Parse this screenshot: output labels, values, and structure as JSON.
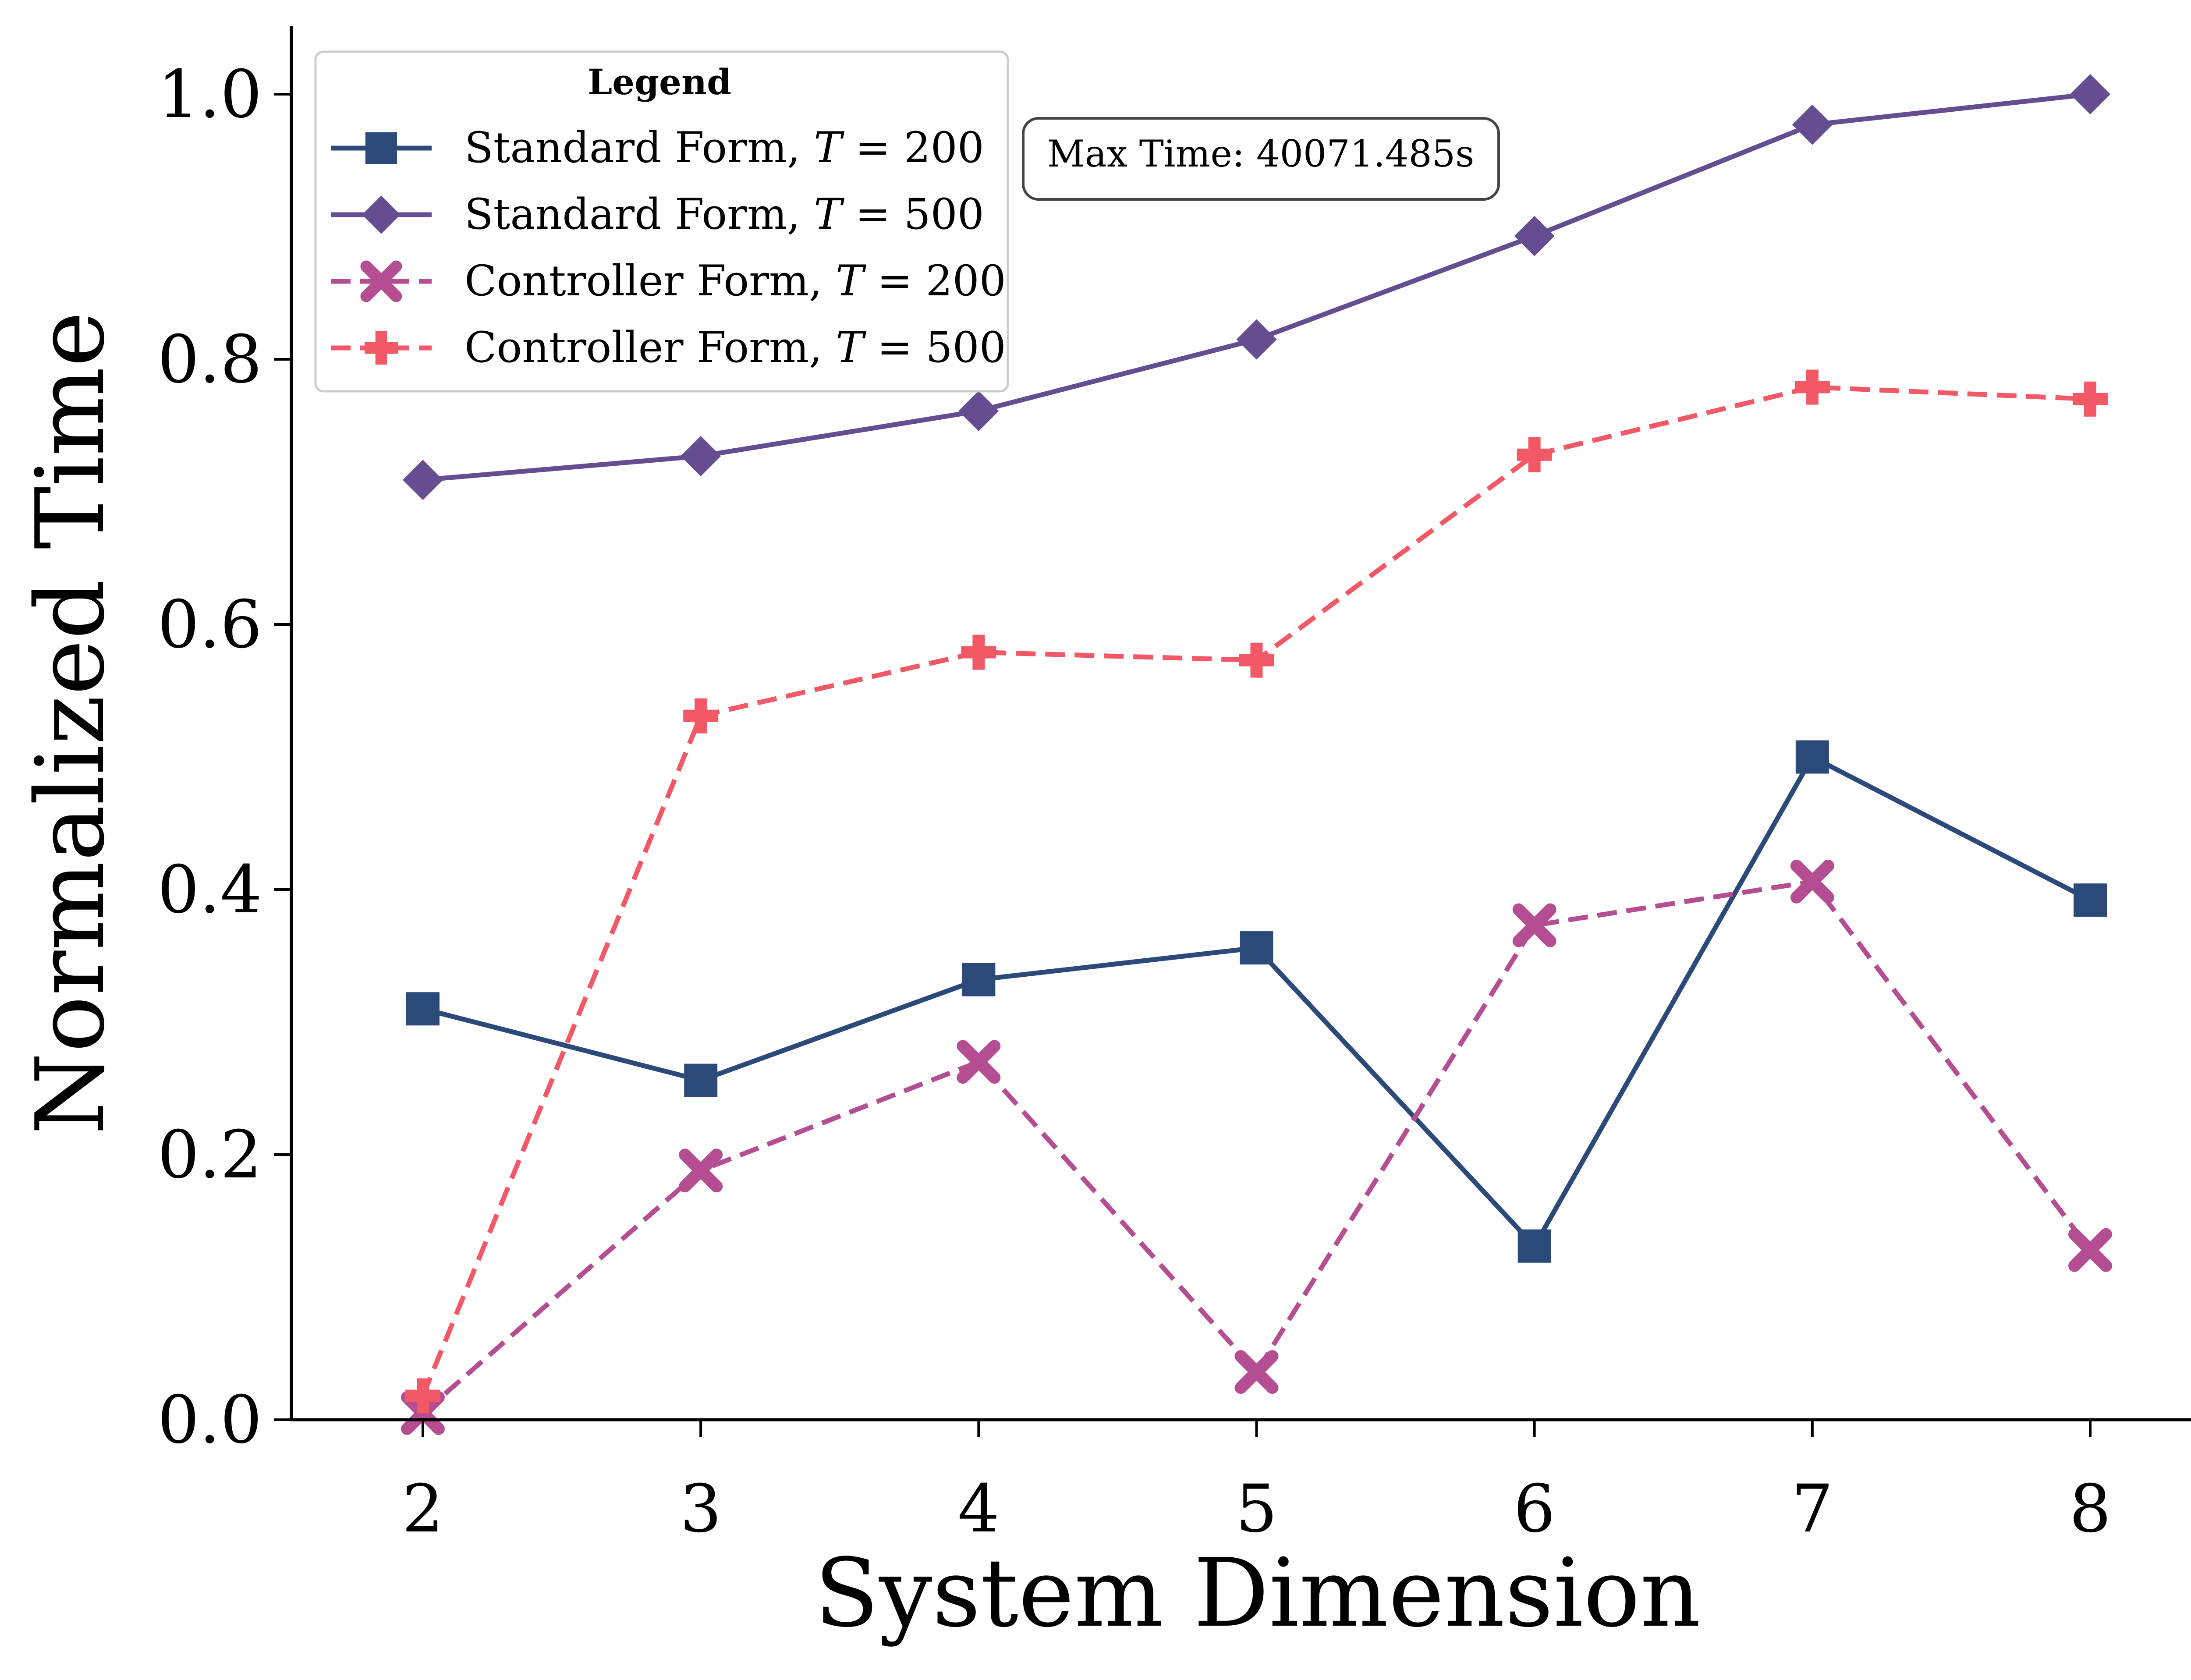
{
  "chart_data": {
    "type": "line",
    "title": "",
    "xlabel": "System Dimension",
    "ylabel": "Normalized Time",
    "x": [
      2,
      3,
      4,
      5,
      6,
      7,
      8
    ],
    "xticks": [
      "2",
      "3",
      "4",
      "5",
      "6",
      "7",
      "8"
    ],
    "yticks": [
      "0.0",
      "0.2",
      "0.4",
      "0.6",
      "0.8",
      "1.0"
    ],
    "ylim": [
      0,
      1.05
    ],
    "xlim": [
      1.5,
      8.5
    ],
    "grid": false,
    "legend_title": "Legend",
    "legend_position": "top-left",
    "annotation": "Max Time: 40071.485s",
    "series": [
      {
        "name": "Standard Form, T = 200",
        "label_prefix": "Standard Form, ",
        "label_var": "T",
        "label_value": " = 200",
        "color": "#2b4a7a",
        "marker": "square",
        "dash": "solid",
        "values": [
          0.31,
          0.256,
          0.332,
          0.356,
          0.131,
          0.5,
          0.392
        ]
      },
      {
        "name": "Standard Form, T = 500",
        "label_prefix": "Standard Form, ",
        "label_var": "T",
        "label_value": " = 500",
        "color": "#664d91",
        "marker": "diamond",
        "dash": "solid",
        "values": [
          0.709,
          0.727,
          0.761,
          0.815,
          0.893,
          0.977,
          1.0
        ]
      },
      {
        "name": "Controller Form, T = 200",
        "label_prefix": "Controller Form, ",
        "label_var": "T",
        "label_value": " = 200",
        "color": "#b44d92",
        "marker": "x",
        "dash": "dashed",
        "values": [
          0.005,
          0.188,
          0.27,
          0.036,
          0.373,
          0.406,
          0.128
        ]
      },
      {
        "name": "Controller Form, T = 500",
        "label_prefix": "Controller Form, ",
        "label_var": "T",
        "label_value": " = 500",
        "color": "#f25865",
        "marker": "plus",
        "dash": "dashed",
        "values": [
          0.018,
          0.531,
          0.579,
          0.573,
          0.728,
          0.779,
          0.77
        ]
      }
    ]
  }
}
